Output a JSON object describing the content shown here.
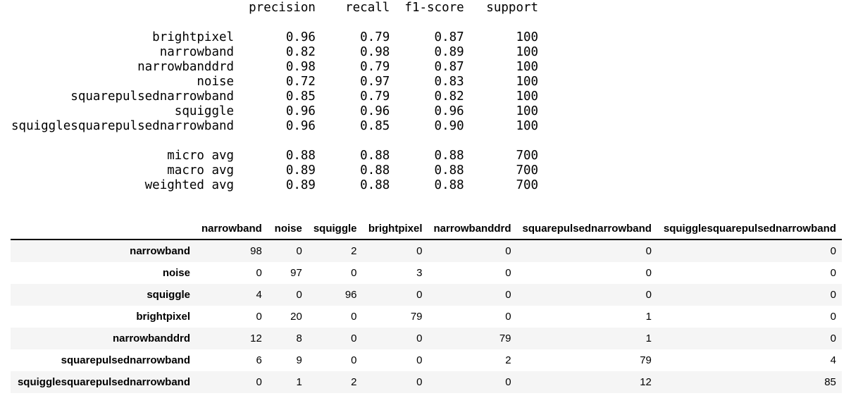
{
  "colors": {
    "background": "#ffffff",
    "text": "#000000",
    "table_stripe": "#f5f5f5",
    "table_header_rule": "#000000"
  },
  "classification_report": {
    "label_col_width": 30,
    "value_col_width": 9,
    "headers": [
      "precision",
      "recall",
      "f1-score",
      "support"
    ],
    "classes": [
      {
        "label": "brightpixel",
        "precision": "0.96",
        "recall": "0.79",
        "f1_score": "0.87",
        "support": "100"
      },
      {
        "label": "narrowband",
        "precision": "0.82",
        "recall": "0.98",
        "f1_score": "0.89",
        "support": "100"
      },
      {
        "label": "narrowbanddrd",
        "precision": "0.98",
        "recall": "0.79",
        "f1_score": "0.87",
        "support": "100"
      },
      {
        "label": "noise",
        "precision": "0.72",
        "recall": "0.97",
        "f1_score": "0.83",
        "support": "100"
      },
      {
        "label": "squarepulsednarrowband",
        "precision": "0.85",
        "recall": "0.79",
        "f1_score": "0.82",
        "support": "100"
      },
      {
        "label": "squiggle",
        "precision": "0.96",
        "recall": "0.96",
        "f1_score": "0.96",
        "support": "100"
      },
      {
        "label": "squigglesquarepulsednarrowband",
        "precision": "0.96",
        "recall": "0.85",
        "f1_score": "0.90",
        "support": "100"
      }
    ],
    "averages": [
      {
        "label": "micro avg",
        "precision": "0.88",
        "recall": "0.88",
        "f1_score": "0.88",
        "support": "700"
      },
      {
        "label": "macro avg",
        "precision": "0.89",
        "recall": "0.88",
        "f1_score": "0.88",
        "support": "700"
      },
      {
        "label": "weighted avg",
        "precision": "0.89",
        "recall": "0.88",
        "f1_score": "0.88",
        "support": "700"
      }
    ]
  },
  "confusion_matrix": {
    "index_header": "",
    "columns": [
      "narrowband",
      "noise",
      "squiggle",
      "brightpixel",
      "narrowbanddrd",
      "squarepulsednarrowband",
      "squigglesquarepulsednarrowband"
    ],
    "rows": [
      {
        "label": "narrowband",
        "values": [
          98,
          0,
          2,
          0,
          0,
          0,
          0
        ]
      },
      {
        "label": "noise",
        "values": [
          0,
          97,
          0,
          3,
          0,
          0,
          0
        ]
      },
      {
        "label": "squiggle",
        "values": [
          4,
          0,
          96,
          0,
          0,
          0,
          0
        ]
      },
      {
        "label": "brightpixel",
        "values": [
          0,
          20,
          0,
          79,
          0,
          1,
          0
        ]
      },
      {
        "label": "narrowbanddrd",
        "values": [
          12,
          8,
          0,
          0,
          79,
          1,
          0
        ]
      },
      {
        "label": "squarepulsednarrowband",
        "values": [
          6,
          9,
          0,
          0,
          2,
          79,
          4
        ]
      },
      {
        "label": "squigglesquarepulsednarrowband",
        "values": [
          0,
          1,
          2,
          0,
          0,
          12,
          85
        ]
      }
    ]
  }
}
